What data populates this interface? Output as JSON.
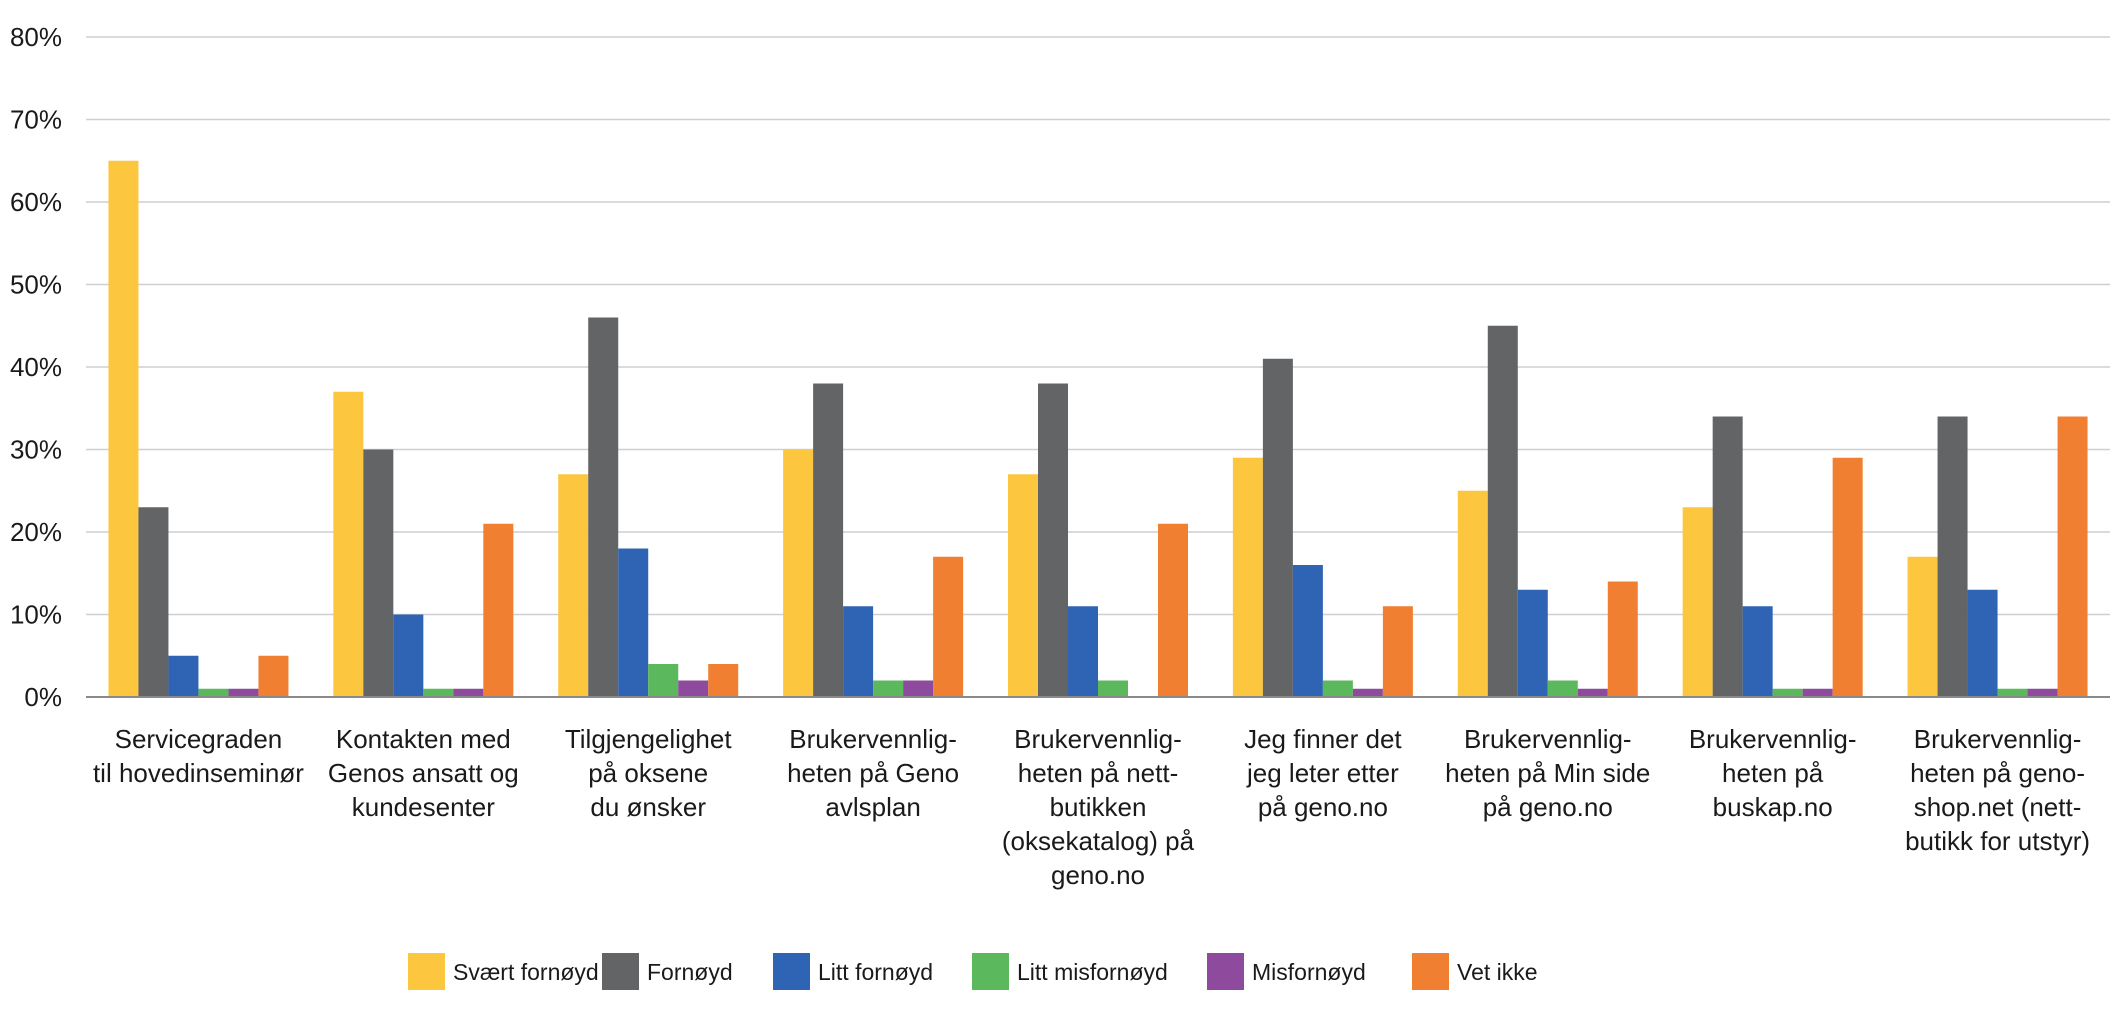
{
  "chart_data": {
    "type": "bar",
    "ylim": [
      0,
      80
    ],
    "yticks": [
      0,
      10,
      20,
      30,
      40,
      50,
      60,
      70,
      80
    ],
    "ytick_labels": [
      "0%",
      "10%",
      "20%",
      "30%",
      "40%",
      "50%",
      "60%",
      "70%",
      "80%"
    ],
    "grid": true,
    "legend_position": "bottom",
    "categories": [
      [
        "Servicegraden",
        "til hovedinseminør"
      ],
      [
        "Kontakten med",
        "Genos ansatt og",
        "kundesenter"
      ],
      [
        "Tilgjengelighet",
        "på oksene",
        "du ønsker"
      ],
      [
        "Brukervennlig-",
        "heten på Geno",
        "avlsplan"
      ],
      [
        "Brukervennlig-",
        "heten på nett-",
        "butikken",
        "(oksekatalog) på",
        "geno.no"
      ],
      [
        "Jeg finner det",
        "jeg leter etter",
        "på geno.no"
      ],
      [
        "Brukervennlig-",
        "heten på Min side",
        "på geno.no"
      ],
      [
        "Brukervennlig-",
        "heten på",
        "buskap.no"
      ],
      [
        "Brukervennlig-",
        "heten på geno-",
        "shop.net (nett-",
        "butikk for utstyr)"
      ]
    ],
    "series": [
      {
        "name": "Svært fornøyd",
        "color": "#FCC63F",
        "values": [
          65,
          37,
          27,
          30,
          27,
          29,
          25,
          23,
          17
        ]
      },
      {
        "name": "Fornøyd",
        "color": "#636466",
        "values": [
          23,
          30,
          46,
          38,
          38,
          41,
          45,
          34,
          34
        ]
      },
      {
        "name": "Litt fornøyd",
        "color": "#2F63B3",
        "values": [
          5,
          10,
          18,
          11,
          11,
          16,
          13,
          11,
          13
        ]
      },
      {
        "name": "Litt misfornøyd",
        "color": "#5CB85C",
        "values": [
          1,
          1,
          4,
          2,
          2,
          2,
          2,
          1,
          1
        ]
      },
      {
        "name": "Misfornøyd",
        "color": "#8E4A9C",
        "values": [
          1,
          1,
          2,
          2,
          0,
          1,
          1,
          1,
          1
        ]
      },
      {
        "name": "Vet ikke",
        "color": "#F07F32",
        "values": [
          5,
          21,
          4,
          17,
          21,
          11,
          14,
          29,
          34
        ]
      }
    ]
  }
}
